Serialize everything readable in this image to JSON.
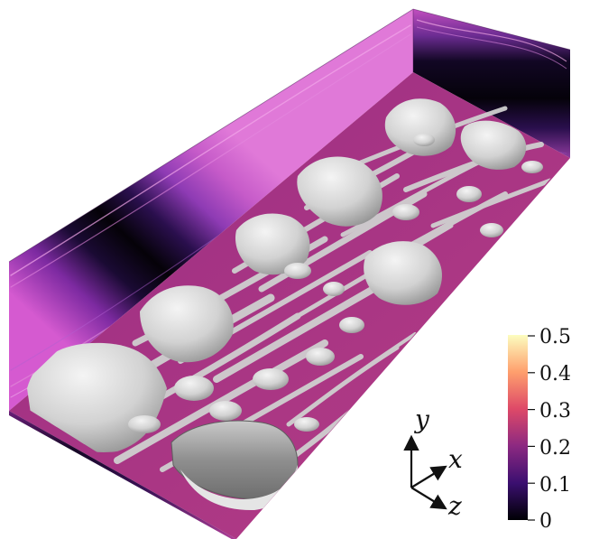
{
  "colorbar": {
    "ticks": [
      "0.5",
      "0.4",
      "0.3",
      "0.2",
      "0.1",
      "0"
    ],
    "colormap": "magma",
    "stops": [
      "#000004",
      "#3b0f70",
      "#8c2981",
      "#de4968",
      "#fe9f6d",
      "#fcfdbf"
    ]
  },
  "axes": {
    "y": "y",
    "x": "x",
    "z": "z"
  },
  "colors": {
    "isosurface": "#d9d9d9",
    "wall_base": "#a23a98",
    "wall_dark": "#07030e",
    "floor": "#a0307f"
  }
}
